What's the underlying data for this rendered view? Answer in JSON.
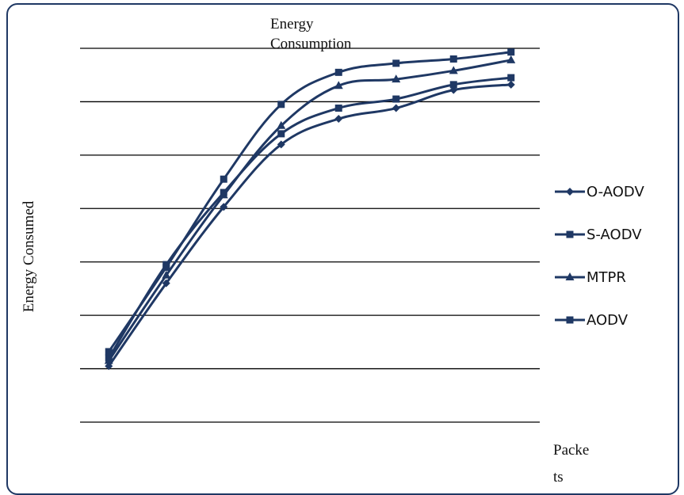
{
  "chart_data": {
    "type": "line",
    "title_lines": [
      "Energy",
      "Consumption"
    ],
    "ylabel": "Energy Consumed",
    "xlabel_lines": [
      "Packe",
      "ts"
    ],
    "x": [
      1,
      2,
      3,
      4,
      5,
      6,
      7,
      8
    ],
    "xlim": [
      0.5,
      8.5
    ],
    "ylim": [
      0,
      7
    ],
    "grid": true,
    "legend_position": "right",
    "line_color": "#1f3864",
    "series": [
      {
        "name": "O-AODV",
        "marker": "diamond",
        "values": [
          1.05,
          2.6,
          4.03,
          5.2,
          5.68,
          5.88,
          6.22,
          6.32
        ]
      },
      {
        "name": "S-AODV",
        "marker": "square",
        "values": [
          1.2,
          2.95,
          4.3,
          5.4,
          5.88,
          6.05,
          6.32,
          6.45
        ]
      },
      {
        "name": "MTPR",
        "marker": "triangle",
        "values": [
          1.15,
          2.75,
          4.25,
          5.55,
          6.3,
          6.42,
          6.58,
          6.78
        ]
      },
      {
        "name": "AODV",
        "marker": "square",
        "values": [
          1.32,
          2.9,
          4.55,
          5.95,
          6.55,
          6.72,
          6.8,
          6.93
        ]
      }
    ]
  }
}
